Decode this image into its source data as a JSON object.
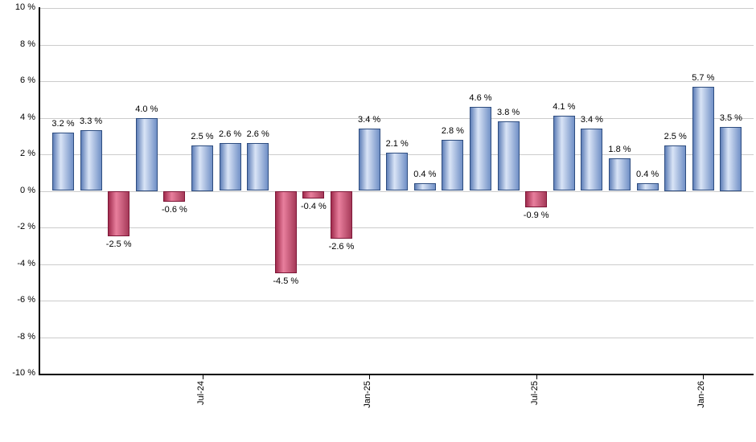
{
  "page": {
    "background": "#ffffff"
  },
  "chart_data": {
    "type": "bar",
    "title": "",
    "xlabel": "",
    "ylabel": "",
    "ylim": [
      -10,
      10
    ],
    "y_tick_step": 2,
    "grid": true,
    "legend": false,
    "y_tick_labels": [
      "10 %",
      "8 %",
      "6 %",
      "4 %",
      "2 %",
      "0 %",
      "-2 %",
      "-4 %",
      "-6 %",
      "-8 %",
      "-10 %"
    ],
    "values": [
      3.2,
      3.3,
      -2.5,
      4.0,
      -0.6,
      2.5,
      2.6,
      2.6,
      -4.5,
      -0.4,
      -2.6,
      3.4,
      2.1,
      0.4,
      2.8,
      4.6,
      3.8,
      -0.9,
      4.1,
      3.4,
      1.8,
      0.4,
      2.5,
      5.7,
      3.5
    ],
    "point_labels": [
      "3.2 %",
      "3.3 %",
      "-2.5 %",
      "4.0 %",
      "-0.6 %",
      "2.5 %",
      "2.6 %",
      "2.6 %",
      "-4.5 %",
      "-0.4 %",
      "-2.6 %",
      "3.4 %",
      "2.1 %",
      "0.4 %",
      "2.8 %",
      "4.6 %",
      "3.8 %",
      "-0.9 %",
      "4.1 %",
      "3.4 %",
      "1.8 %",
      "0.4 %",
      "2.5 %",
      "5.7 %",
      "3.5 %"
    ],
    "x_ticks": [
      {
        "bar_index": 5,
        "label": "Jul-24"
      },
      {
        "bar_index": 11,
        "label": "Jan-25"
      },
      {
        "bar_index": 17,
        "label": "Jul-25"
      },
      {
        "bar_index": 23,
        "label": "Jan-26"
      }
    ],
    "colors": {
      "background": "#ffffff",
      "grid": "#cccccc",
      "axis": "#000000",
      "text": "#000000",
      "positive_border": "#2e4d80",
      "positive_gradient": [
        "#5f7fb8",
        "#d9e4f6",
        "#7190c6"
      ],
      "negative_border": "#7d1637",
      "negative_gradient": [
        "#a02b4d",
        "#e87f9d",
        "#a63a59"
      ]
    }
  }
}
